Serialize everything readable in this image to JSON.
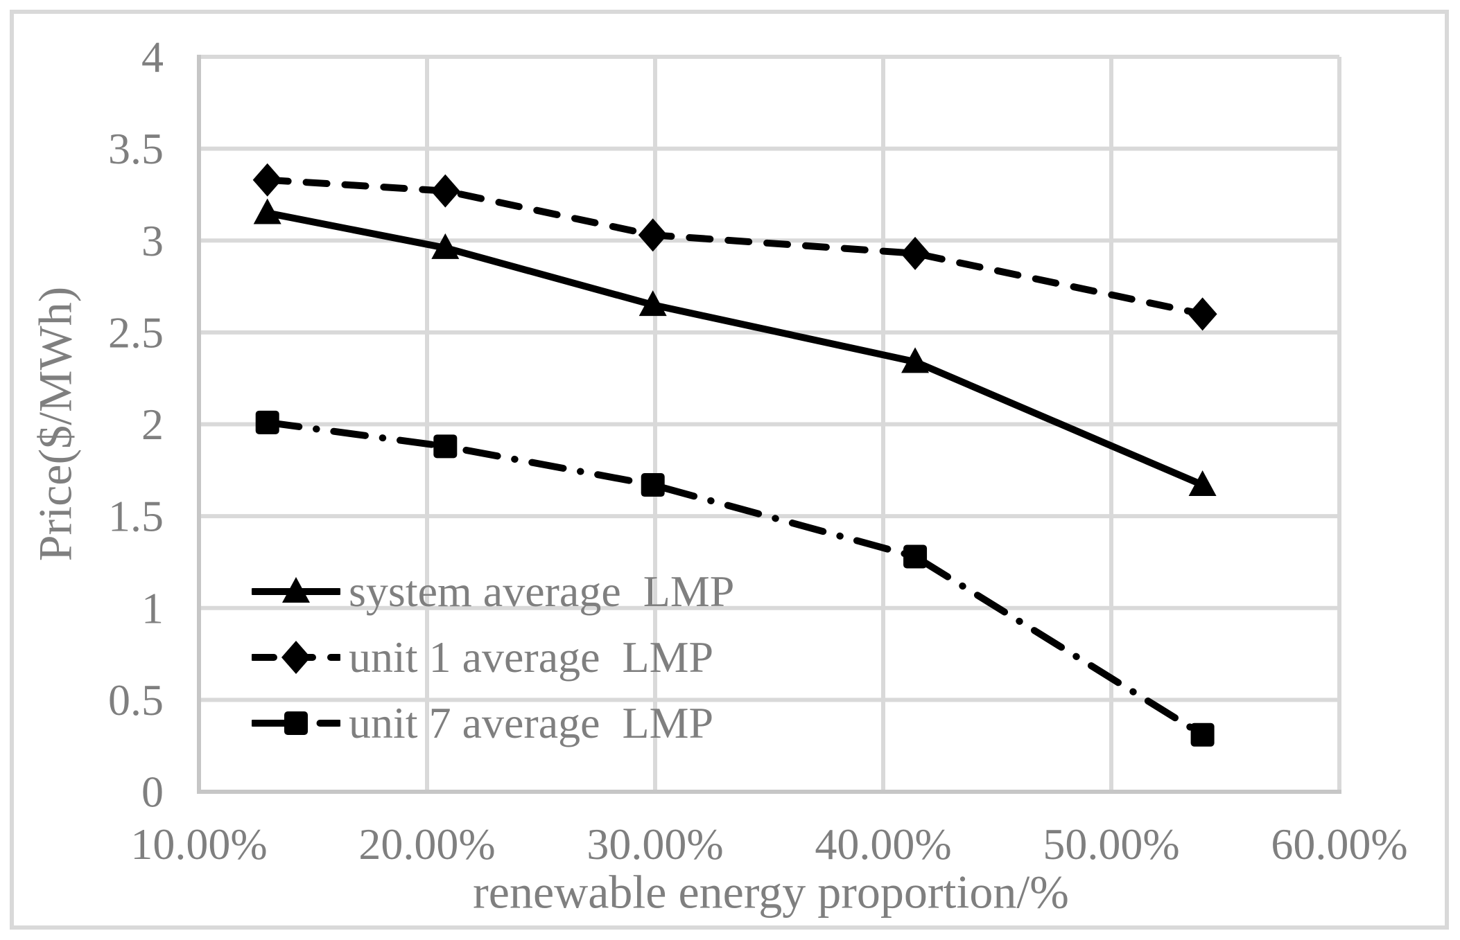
{
  "figure": {
    "kind": "scientific line chart",
    "background": "#ffffff"
  },
  "colors": {
    "series_line": "#000000",
    "marker_fill": "#000000",
    "grid": "#d9d9d9",
    "axis_line": "#c6c6c6",
    "frame_border": "#d9d9d9",
    "text": "#7f7f7f",
    "background": "#ffffff"
  },
  "chart_data": {
    "type": "line",
    "title": "",
    "xlabel": "renewable energy proportion/%",
    "ylabel": "Price($/MWh)",
    "x": [
      13,
      20.8,
      29.9,
      41.4,
      54
    ],
    "series": [
      {
        "name": "system average  LMP",
        "line": "solid",
        "marker": "triangle",
        "values": [
          3.15,
          2.96,
          2.65,
          2.34,
          1.67
        ]
      },
      {
        "name": "unit 1 average  LMP",
        "line": "dashed",
        "marker": "diamond",
        "values": [
          3.33,
          3.27,
          3.03,
          2.93,
          2.6
        ]
      },
      {
        "name": "unit 7 average  LMP",
        "line": "dashdot",
        "marker": "square",
        "values": [
          2.01,
          1.88,
          1.67,
          1.28,
          0.31
        ]
      }
    ],
    "xlim": [
      10,
      60
    ],
    "ylim": [
      0,
      4
    ],
    "x_ticks": [
      10,
      20,
      30,
      40,
      50,
      60
    ],
    "x_tick_labels": [
      "10.00%",
      "20.00%",
      "30.00%",
      "40.00%",
      "50.00%",
      "60.00%"
    ],
    "y_ticks": [
      0,
      0.5,
      1,
      1.5,
      2,
      2.5,
      3,
      3.5,
      4
    ],
    "y_tick_labels": [
      "0",
      "0.5",
      "1",
      "1.5",
      "2",
      "2.5",
      "3",
      "3.5",
      "4"
    ],
    "grid": "on",
    "legend_position": "inside lower-left"
  }
}
